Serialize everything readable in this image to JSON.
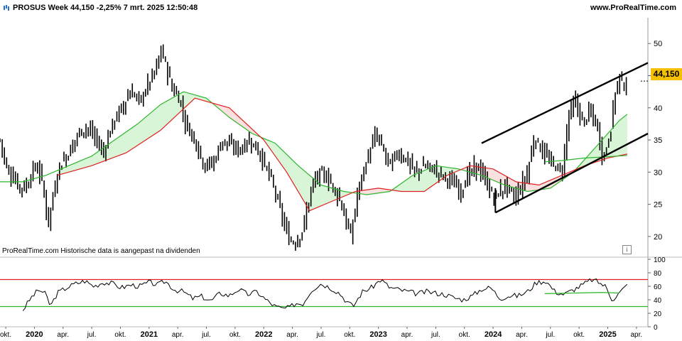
{
  "header": {
    "title": "PROSUS Week 44,150 -2,25% 7 mrt. 2025 12:50:48",
    "site": "www.ProRealTime.com",
    "icon": "candlestick-icon"
  },
  "note": "ProRealTime.com  Historische data is aangepast na dividenden",
  "info_label": "i",
  "last_price_label": "44,150",
  "colors": {
    "price": "#000000",
    "ma_fast": "#2db52d",
    "ma_slow": "#e02020",
    "fill_up": "#d8f5d8",
    "fill_down": "#fbe0e0",
    "rsi": "#000000",
    "rsi_upper": "#e02020",
    "rsi_lower": "#2db52d",
    "badge": "#f5c000"
  },
  "chart_data": [
    {
      "type": "line",
      "title": "",
      "ylim": [
        17,
        54
      ],
      "y_ticks": [
        20,
        25,
        30,
        35,
        40,
        45,
        50
      ],
      "x_labels": [
        "okt.",
        "2020",
        "apr.",
        "jul.",
        "okt.",
        "2021",
        "apr.",
        "jul.",
        "okt.",
        "2022",
        "apr.",
        "jul.",
        "okt.",
        "2023",
        "apr.",
        "jul.",
        "okt.",
        "2024",
        "apr.",
        "jul.",
        "okt.",
        "2025",
        "apr."
      ],
      "x_label_bold": [
        "2020",
        "2021",
        "2022",
        "2023",
        "2024",
        "2025"
      ],
      "xlim": [
        2019.7,
        2025.35
      ],
      "x_label_pos": [
        2019.75,
        2020.0,
        2020.25,
        2020.5,
        2020.75,
        2021.0,
        2021.25,
        2021.5,
        2021.75,
        2022.0,
        2022.25,
        2022.5,
        2022.75,
        2023.0,
        2023.25,
        2023.5,
        2023.75,
        2024.0,
        2024.25,
        2024.5,
        2024.75,
        2025.0,
        2025.25
      ],
      "series": [
        {
          "key": "price",
          "x": [
            2019.7,
            2019.76,
            2019.82,
            2019.88,
            2019.94,
            2020.0,
            2020.06,
            2020.12,
            2020.18,
            2020.22,
            2020.3,
            2020.38,
            2020.46,
            2020.54,
            2020.6,
            2020.68,
            2020.76,
            2020.84,
            2020.92,
            2021.0,
            2021.06,
            2021.1,
            2021.14,
            2021.2,
            2021.26,
            2021.32,
            2021.4,
            2021.48,
            2021.56,
            2021.64,
            2021.72,
            2021.8,
            2021.88,
            2021.96,
            2022.04,
            2022.1,
            2022.16,
            2022.22,
            2022.28,
            2022.34,
            2022.42,
            2022.5,
            2022.58,
            2022.66,
            2022.72,
            2022.76,
            2022.82,
            2022.9,
            2022.98,
            2023.04,
            2023.1,
            2023.16,
            2023.24,
            2023.32,
            2023.4,
            2023.48,
            2023.56,
            2023.64,
            2023.72,
            2023.78,
            2023.86,
            2023.94,
            2024.0,
            2024.06,
            2024.12,
            2024.18,
            2024.24,
            2024.3,
            2024.36,
            2024.42,
            2024.48,
            2024.54,
            2024.6,
            2024.66,
            2024.72,
            2024.78,
            2024.84,
            2024.9,
            2024.96,
            2025.02,
            2025.06,
            2025.1,
            2025.14,
            2025.17
          ],
          "y": [
            35,
            30.5,
            29,
            27.5,
            28,
            31,
            29.5,
            22,
            28,
            31,
            33,
            36,
            37,
            35,
            33,
            37.5,
            40,
            42.5,
            41,
            44,
            46,
            49,
            47,
            43,
            41.5,
            37.5,
            35,
            31,
            31.5,
            35,
            34,
            33.5,
            35,
            33,
            30,
            27,
            23,
            19.5,
            19,
            21,
            28,
            30,
            28.5,
            26,
            22,
            20,
            27,
            32,
            36,
            33.5,
            31,
            33,
            32,
            30,
            31,
            30.5,
            29.5,
            28.5,
            27,
            29.5,
            31,
            28.5,
            26,
            27,
            28,
            26,
            27.5,
            30,
            35.5,
            33.5,
            32,
            31,
            30,
            39,
            41,
            37.5,
            39.5,
            37.5,
            32,
            36,
            42,
            45,
            43.5,
            44.15
          ]
        },
        {
          "key": "ma_fast",
          "x": [
            2019.7,
            2019.9,
            2020.1,
            2020.3,
            2020.5,
            2020.7,
            2020.9,
            2021.1,
            2021.3,
            2021.5,
            2021.7,
            2021.9,
            2022.1,
            2022.3,
            2022.5,
            2022.7,
            2022.9,
            2023.1,
            2023.3,
            2023.5,
            2023.7,
            2023.9,
            2024.1,
            2024.3,
            2024.5,
            2024.7,
            2024.9,
            2025.1,
            2025.17
          ],
          "y": [
            28.5,
            28.5,
            29.5,
            31,
            32.5,
            35,
            37.5,
            40.5,
            42.5,
            41.5,
            38.5,
            36,
            34.5,
            31,
            28,
            27,
            26.5,
            27,
            29.5,
            31,
            30.5,
            29.5,
            28,
            27,
            27.5,
            30,
            34,
            38,
            39
          ]
        },
        {
          "key": "ma_slow",
          "x": [
            2020.2,
            2020.5,
            2020.8,
            2021.1,
            2021.4,
            2021.7,
            2022.0,
            2022.2,
            2022.4,
            2022.6,
            2022.8,
            2023.0,
            2023.2,
            2023.4,
            2023.6,
            2023.8,
            2024.0,
            2024.2,
            2024.4,
            2024.6,
            2024.8,
            2025.0,
            2025.17
          ],
          "y": [
            29.5,
            31,
            33,
            36.5,
            41.5,
            40,
            35,
            30,
            24,
            25.5,
            27,
            27.5,
            27,
            27,
            29.5,
            31,
            30.5,
            28.5,
            28,
            29.5,
            31,
            32.2,
            32.8
          ]
        }
      ],
      "ma_fast_secondary": {
        "x": [
          2024.45,
          2024.6,
          2024.8,
          2025.0,
          2025.17
        ],
        "y": [
          31.6,
          31.8,
          32.2,
          32.4,
          32.6
        ]
      },
      "trend_channel": {
        "upper": {
          "x": [
            2023.9,
            2025.35
          ],
          "y": [
            34.5,
            47
          ]
        },
        "lower": {
          "x": [
            2024.02,
            2025.35
          ],
          "y": [
            23.7,
            36
          ]
        },
        "left_edge": {
          "x": [
            2024.02,
            2024.02
          ],
          "y": [
            23.7,
            27.5
          ]
        }
      },
      "last_value": 44.15
    },
    {
      "type": "line",
      "title": "",
      "ylim": [
        0,
        100
      ],
      "y_ticks": [
        0,
        20,
        40,
        60,
        80,
        100
      ],
      "upper_level": 70,
      "lower_level": 30,
      "series": [
        {
          "key": "rsi",
          "x": [
            2019.9,
            2019.98,
            2020.04,
            2020.1,
            2020.14,
            2020.2,
            2020.28,
            2020.36,
            2020.44,
            2020.52,
            2020.6,
            2020.68,
            2020.76,
            2020.84,
            2020.92,
            2021.0,
            2021.08,
            2021.14,
            2021.22,
            2021.3,
            2021.38,
            2021.46,
            2021.54,
            2021.62,
            2021.7,
            2021.78,
            2021.86,
            2021.94,
            2022.02,
            2022.1,
            2022.16,
            2022.22,
            2022.28,
            2022.34,
            2022.42,
            2022.5,
            2022.58,
            2022.66,
            2022.72,
            2022.78,
            2022.86,
            2022.94,
            2023.02,
            2023.1,
            2023.18,
            2023.26,
            2023.34,
            2023.42,
            2023.5,
            2023.58,
            2023.66,
            2023.74,
            2023.82,
            2023.9,
            2023.98,
            2024.06,
            2024.14,
            2024.22,
            2024.3,
            2024.38,
            2024.46,
            2024.54,
            2024.62,
            2024.7,
            2024.78,
            2024.86,
            2024.92,
            2024.98,
            2025.04,
            2025.1,
            2025.17
          ],
          "y": [
            25,
            45,
            55,
            48,
            30,
            50,
            58,
            64,
            68,
            60,
            66,
            64,
            58,
            62,
            60,
            66,
            62,
            68,
            55,
            52,
            42,
            45,
            38,
            50,
            46,
            56,
            48,
            52,
            40,
            30,
            27,
            28,
            35,
            34,
            55,
            64,
            58,
            50,
            38,
            30,
            52,
            58,
            70,
            58,
            55,
            52,
            49,
            52,
            50,
            48,
            43,
            40,
            46,
            56,
            58,
            42,
            46,
            46,
            52,
            66,
            68,
            52,
            48,
            55,
            62,
            70,
            66,
            60,
            40,
            50,
            62
          ]
        }
      ],
      "rsi_secondary": {
        "x": [
          2024.45,
          2024.7,
          2024.95,
          2025.1
        ],
        "y": [
          49,
          50,
          51,
          50
        ]
      }
    }
  ]
}
